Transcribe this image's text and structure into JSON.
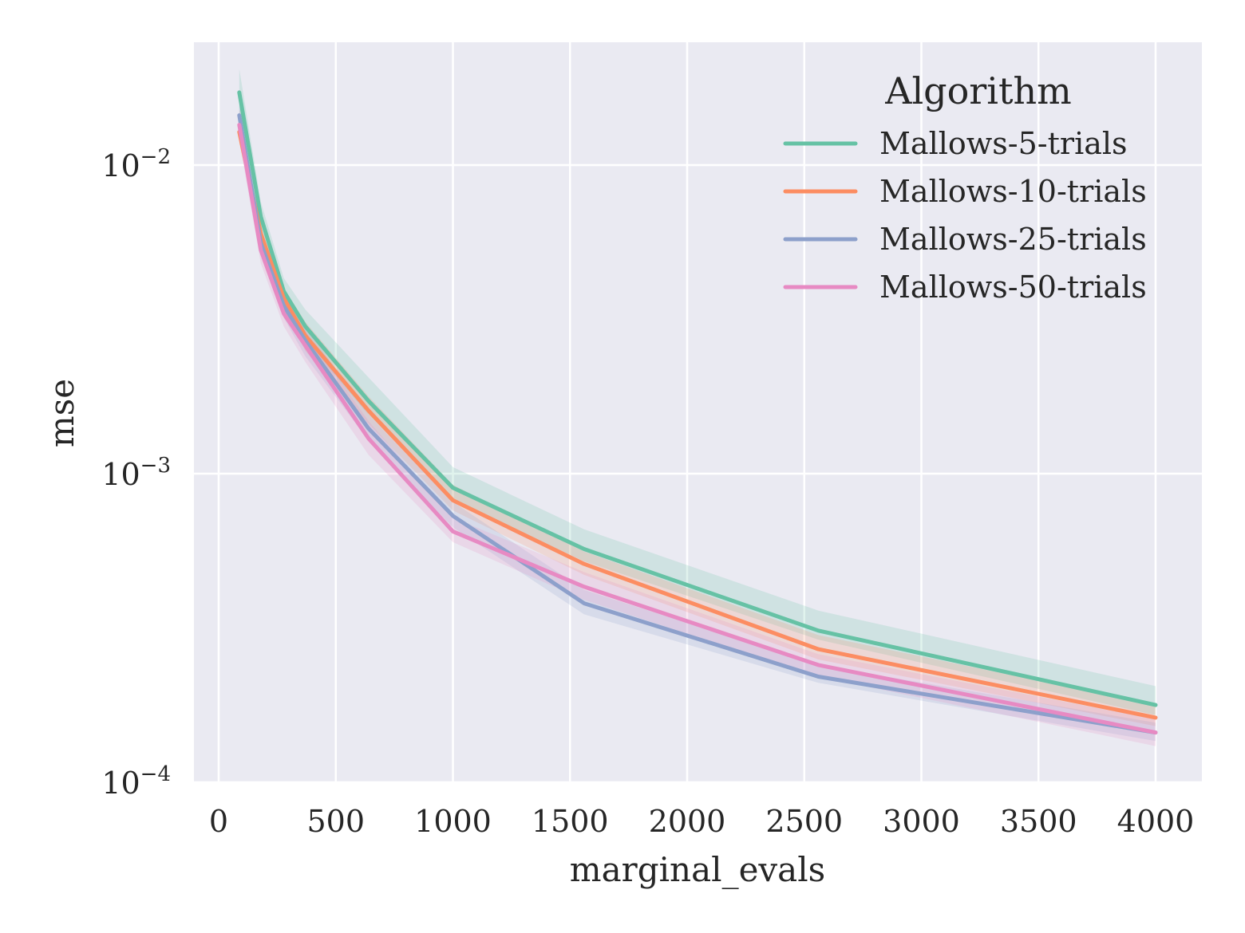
{
  "chart_data": {
    "type": "line",
    "title": "",
    "xlabel": "marginal_evals",
    "ylabel": "mse",
    "xlim": [
      -100,
      4200
    ],
    "ylim": [
      0.0001,
      0.025
    ],
    "yscale": "log",
    "grid": true,
    "xticks": [
      {
        "value": 0,
        "label": "0"
      },
      {
        "value": 500,
        "label": "500"
      },
      {
        "value": 1000,
        "label": "1000"
      },
      {
        "value": 1500,
        "label": "1500"
      },
      {
        "value": 2000,
        "label": "2000"
      },
      {
        "value": 2500,
        "label": "2500"
      },
      {
        "value": 3000,
        "label": "3000"
      },
      {
        "value": 3500,
        "label": "3500"
      },
      {
        "value": 4000,
        "label": "4000"
      }
    ],
    "yticks": [
      {
        "value": 0.01,
        "base": "10",
        "exp": "−2"
      },
      {
        "value": 0.001,
        "base": "10",
        "exp": "−3"
      },
      {
        "value": 0.0001,
        "base": "10",
        "exp": "−4"
      }
    ],
    "legend": {
      "title": "Algorithm",
      "position": "top-right"
    },
    "x": [
      88,
      180,
      278,
      370,
      640,
      1000,
      1560,
      2560,
      4000
    ],
    "series": [
      {
        "name": "Mallows-5-trials",
        "color": "#66c2a5",
        "values": [
          0.0172,
          0.0068,
          0.0039,
          0.003,
          0.00172,
          0.0009,
          0.00057,
          0.00031,
          0.000178
        ],
        "lower": [
          0.0145,
          0.0062,
          0.0036,
          0.0027,
          0.00155,
          0.00082,
          0.00052,
          0.00029,
          0.000165
        ],
        "upper": [
          0.0205,
          0.0076,
          0.0043,
          0.0034,
          0.00205,
          0.00105,
          0.00066,
          0.00036,
          0.000205
        ]
      },
      {
        "name": "Mallows-10-trials",
        "color": "#fc8d62",
        "values": [
          0.0128,
          0.006,
          0.0037,
          0.0028,
          0.0016,
          0.00082,
          0.00051,
          0.00027,
          0.000162
        ],
        "lower": [
          0.0118,
          0.0057,
          0.0034,
          0.0025,
          0.00145,
          0.00076,
          0.00047,
          0.00025,
          0.000152
        ],
        "upper": [
          0.014,
          0.0065,
          0.004,
          0.0031,
          0.00178,
          0.00092,
          0.00056,
          0.0003,
          0.000178
        ]
      },
      {
        "name": "Mallows-25-trials",
        "color": "#8da0cb",
        "values": [
          0.0145,
          0.0056,
          0.0035,
          0.0027,
          0.0014,
          0.00073,
          0.00038,
          0.00022,
          0.000145
        ],
        "lower": [
          0.0133,
          0.0053,
          0.0032,
          0.0024,
          0.00128,
          0.00067,
          0.00035,
          0.00021,
          0.000136
        ],
        "upper": [
          0.0158,
          0.006,
          0.0038,
          0.003,
          0.00155,
          0.00081,
          0.00042,
          0.00024,
          0.000156
        ]
      },
      {
        "name": "Mallows-50-trials",
        "color": "#e78ac3",
        "values": [
          0.0135,
          0.0053,
          0.0033,
          0.0026,
          0.0013,
          0.00065,
          0.00043,
          0.00024,
          0.000145
        ],
        "lower": [
          0.012,
          0.0048,
          0.003,
          0.0023,
          0.00115,
          0.0006,
          0.00039,
          0.00022,
          0.000131
        ],
        "upper": [
          0.0152,
          0.0059,
          0.0037,
          0.0029,
          0.00148,
          0.00072,
          0.00048,
          0.00026,
          0.00016
        ]
      }
    ]
  }
}
